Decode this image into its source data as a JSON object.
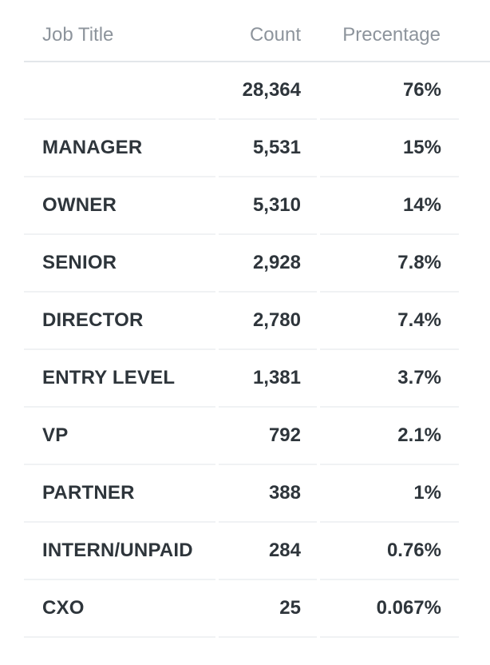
{
  "table": {
    "headers": {
      "job_title": "Job Title",
      "count": "Count",
      "percentage": "Precentage"
    },
    "rows": [
      {
        "job_title": "",
        "count": "28,364",
        "percentage": "76%"
      },
      {
        "job_title": "MANAGER",
        "count": "5,531",
        "percentage": "15%"
      },
      {
        "job_title": "OWNER",
        "count": "5,310",
        "percentage": "14%"
      },
      {
        "job_title": "SENIOR",
        "count": "2,928",
        "percentage": "7.8%"
      },
      {
        "job_title": "DIRECTOR",
        "count": "2,780",
        "percentage": "7.4%"
      },
      {
        "job_title": "ENTRY LEVEL",
        "count": "1,381",
        "percentage": "3.7%"
      },
      {
        "job_title": "VP",
        "count": "792",
        "percentage": "2.1%"
      },
      {
        "job_title": "PARTNER",
        "count": "388",
        "percentage": "1%"
      },
      {
        "job_title": "INTERN/UNPAID",
        "count": "284",
        "percentage": "0.76%"
      },
      {
        "job_title": "CXO",
        "count": "25",
        "percentage": "0.067%"
      }
    ]
  },
  "colors": {
    "header_text": "#8d949c",
    "body_text": "#2e353b",
    "header_border": "#e3e6ea",
    "row_border": "#f0f2f4"
  }
}
